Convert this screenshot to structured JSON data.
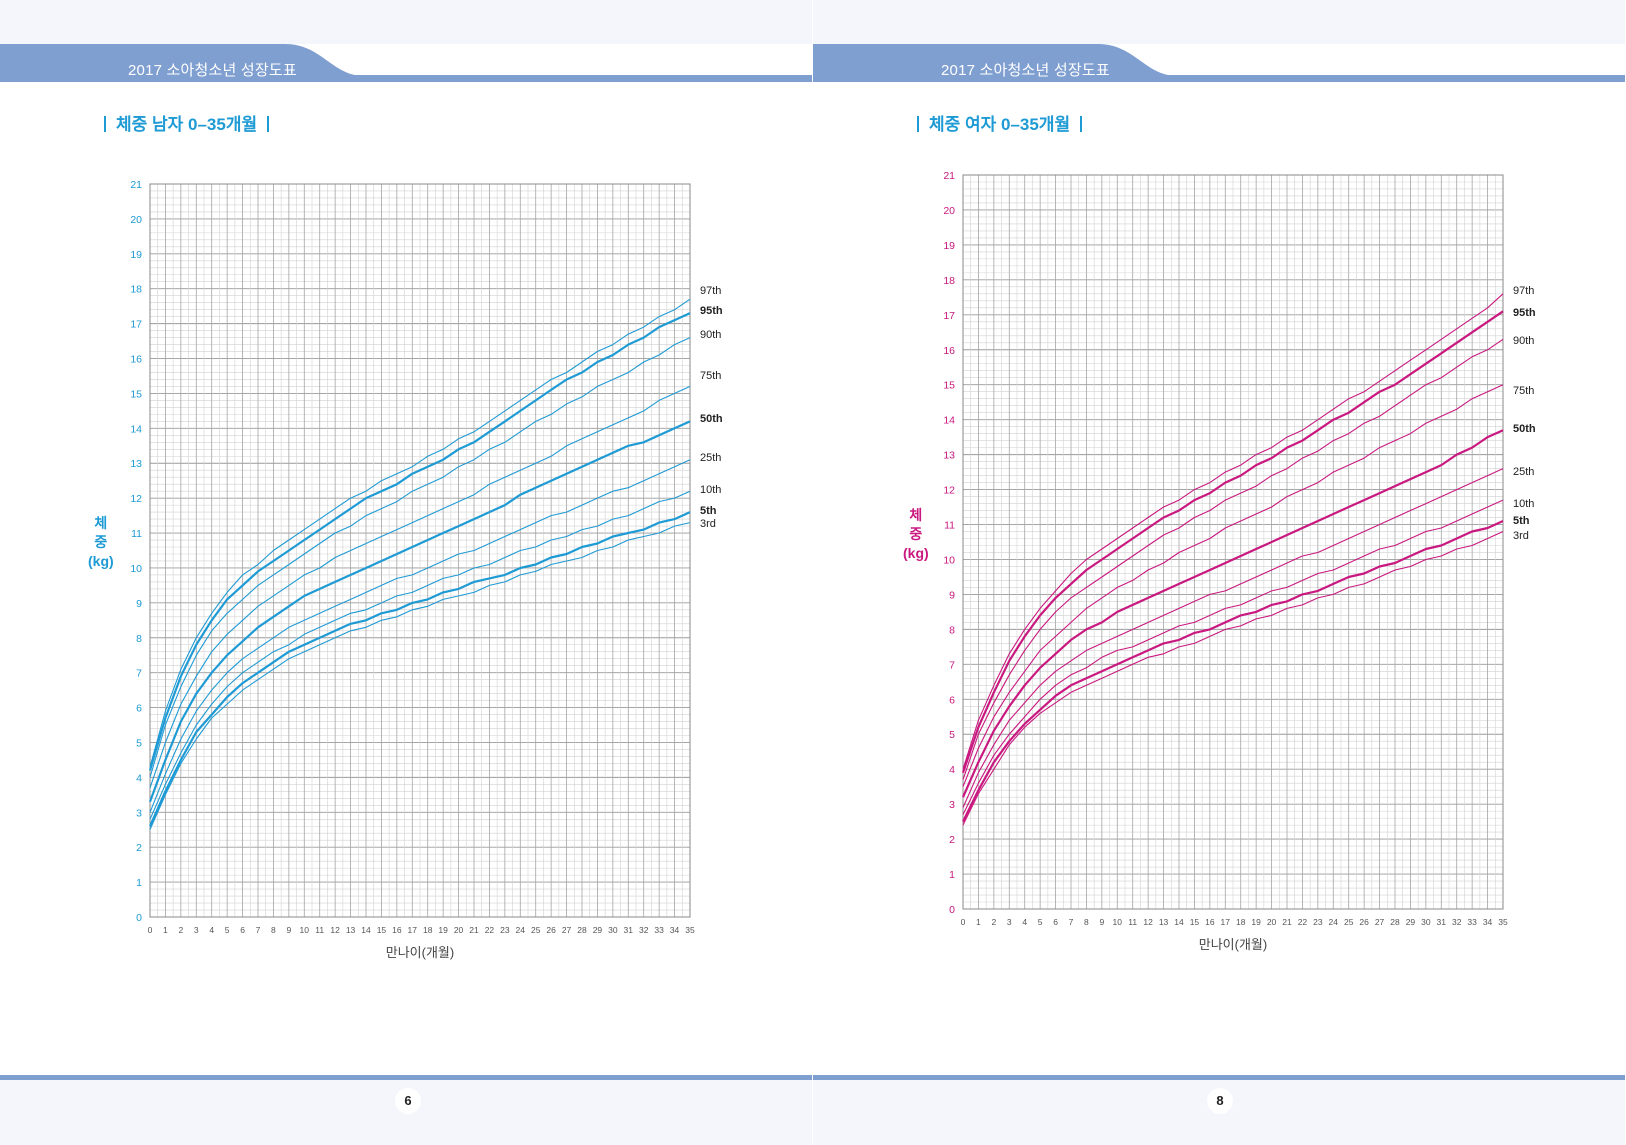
{
  "header": {
    "title": "2017 소아청소년 성장도표"
  },
  "footer": {
    "left_page": "6",
    "right_page": "8"
  },
  "percentile_labels": [
    "97th",
    "95th",
    "90th",
    "75th",
    "50th",
    "25th",
    "10th",
    "5th",
    "3rd"
  ],
  "colors": {
    "header_blue": "#7f9fd1",
    "boys_line": "#1e9ad4",
    "girls_line": "#c9187f"
  },
  "chart_data": [
    {
      "type": "line",
      "title": "체중 남자 0–35개월",
      "xlabel": "만나이(개월)",
      "ylabel": [
        "체",
        "중",
        "(kg)"
      ],
      "xlim": [
        0,
        35
      ],
      "ylim": [
        0,
        21
      ],
      "grid": true,
      "x": [
        0,
        1,
        2,
        3,
        4,
        5,
        6,
        7,
        8,
        9,
        10,
        11,
        12,
        13,
        14,
        15,
        16,
        17,
        18,
        19,
        20,
        21,
        22,
        23,
        24,
        25,
        26,
        27,
        28,
        29,
        30,
        31,
        32,
        33,
        34,
        35
      ],
      "series": [
        {
          "name": "97th",
          "emphasis": false,
          "values": [
            4.3,
            5.9,
            7.1,
            8.0,
            8.7,
            9.3,
            9.8,
            10.1,
            10.5,
            10.8,
            11.1,
            11.4,
            11.7,
            12.0,
            12.2,
            12.5,
            12.7,
            12.9,
            13.2,
            13.4,
            13.7,
            13.9,
            14.2,
            14.5,
            14.8,
            15.1,
            15.4,
            15.6,
            15.9,
            16.2,
            16.4,
            16.7,
            16.9,
            17.2,
            17.4,
            17.7
          ]
        },
        {
          "name": "95th",
          "emphasis": true,
          "values": [
            4.2,
            5.7,
            6.9,
            7.8,
            8.5,
            9.1,
            9.5,
            9.9,
            10.2,
            10.5,
            10.8,
            11.1,
            11.4,
            11.7,
            12.0,
            12.2,
            12.4,
            12.7,
            12.9,
            13.1,
            13.4,
            13.6,
            13.9,
            14.2,
            14.5,
            14.8,
            15.1,
            15.4,
            15.6,
            15.9,
            16.1,
            16.4,
            16.6,
            16.9,
            17.1,
            17.3
          ]
        },
        {
          "name": "90th",
          "emphasis": false,
          "values": [
            4.0,
            5.5,
            6.6,
            7.5,
            8.2,
            8.7,
            9.1,
            9.5,
            9.8,
            10.1,
            10.4,
            10.7,
            11.0,
            11.2,
            11.5,
            11.7,
            11.9,
            12.2,
            12.4,
            12.6,
            12.9,
            13.1,
            13.4,
            13.6,
            13.9,
            14.2,
            14.4,
            14.7,
            14.9,
            15.2,
            15.4,
            15.6,
            15.9,
            16.1,
            16.4,
            16.6
          ]
        },
        {
          "name": "75th",
          "emphasis": false,
          "values": [
            3.7,
            5.0,
            6.1,
            6.9,
            7.6,
            8.1,
            8.5,
            8.9,
            9.2,
            9.5,
            9.8,
            10.0,
            10.3,
            10.5,
            10.7,
            10.9,
            11.1,
            11.3,
            11.5,
            11.7,
            11.9,
            12.1,
            12.4,
            12.6,
            12.8,
            13.0,
            13.2,
            13.5,
            13.7,
            13.9,
            14.1,
            14.3,
            14.5,
            14.8,
            15.0,
            15.2
          ]
        },
        {
          "name": "50th",
          "emphasis": true,
          "values": [
            3.3,
            4.5,
            5.6,
            6.4,
            7.0,
            7.5,
            7.9,
            8.3,
            8.6,
            8.9,
            9.2,
            9.4,
            9.6,
            9.8,
            10.0,
            10.2,
            10.4,
            10.6,
            10.8,
            11.0,
            11.2,
            11.4,
            11.6,
            11.8,
            12.1,
            12.3,
            12.5,
            12.7,
            12.9,
            13.1,
            13.3,
            13.5,
            13.6,
            13.8,
            14.0,
            14.2
          ]
        },
        {
          "name": "25th",
          "emphasis": false,
          "values": [
            3.0,
            4.1,
            5.1,
            5.9,
            6.5,
            7.0,
            7.4,
            7.7,
            8.0,
            8.3,
            8.5,
            8.7,
            8.9,
            9.1,
            9.3,
            9.5,
            9.7,
            9.8,
            10.0,
            10.2,
            10.4,
            10.5,
            10.7,
            10.9,
            11.1,
            11.3,
            11.5,
            11.6,
            11.8,
            12.0,
            12.2,
            12.3,
            12.5,
            12.7,
            12.9,
            13.1
          ]
        },
        {
          "name": "10th",
          "emphasis": false,
          "values": [
            2.8,
            3.8,
            4.7,
            5.5,
            6.1,
            6.6,
            7.0,
            7.3,
            7.6,
            7.8,
            8.1,
            8.3,
            8.5,
            8.7,
            8.8,
            9.0,
            9.2,
            9.3,
            9.5,
            9.7,
            9.8,
            10.0,
            10.1,
            10.3,
            10.5,
            10.6,
            10.8,
            10.9,
            11.1,
            11.2,
            11.4,
            11.5,
            11.7,
            11.9,
            12.0,
            12.2
          ]
        },
        {
          "name": "5th",
          "emphasis": true,
          "values": [
            2.6,
            3.6,
            4.5,
            5.3,
            5.8,
            6.3,
            6.7,
            7.0,
            7.3,
            7.6,
            7.8,
            8.0,
            8.2,
            8.4,
            8.5,
            8.7,
            8.8,
            9.0,
            9.1,
            9.3,
            9.4,
            9.6,
            9.7,
            9.8,
            10.0,
            10.1,
            10.3,
            10.4,
            10.6,
            10.7,
            10.9,
            11.0,
            11.1,
            11.3,
            11.4,
            11.6
          ]
        },
        {
          "name": "3rd",
          "emphasis": false,
          "values": [
            2.5,
            3.5,
            4.4,
            5.1,
            5.7,
            6.1,
            6.5,
            6.8,
            7.1,
            7.4,
            7.6,
            7.8,
            8.0,
            8.2,
            8.3,
            8.5,
            8.6,
            8.8,
            8.9,
            9.1,
            9.2,
            9.3,
            9.5,
            9.6,
            9.8,
            9.9,
            10.1,
            10.2,
            10.3,
            10.5,
            10.6,
            10.8,
            10.9,
            11.0,
            11.2,
            11.3
          ]
        }
      ]
    },
    {
      "type": "line",
      "title": "체중 여자 0–35개월",
      "xlabel": "만나이(개월)",
      "ylabel": [
        "체",
        "중",
        "(kg)"
      ],
      "xlim": [
        0,
        35
      ],
      "ylim": [
        0,
        21
      ],
      "grid": true,
      "x": [
        0,
        1,
        2,
        3,
        4,
        5,
        6,
        7,
        8,
        9,
        10,
        11,
        12,
        13,
        14,
        15,
        16,
        17,
        18,
        19,
        20,
        21,
        22,
        23,
        24,
        25,
        26,
        27,
        28,
        29,
        30,
        31,
        32,
        33,
        34,
        35
      ],
      "series": [
        {
          "name": "97th",
          "emphasis": false,
          "values": [
            4.0,
            5.4,
            6.4,
            7.3,
            8.0,
            8.6,
            9.1,
            9.6,
            10.0,
            10.3,
            10.6,
            10.9,
            11.2,
            11.5,
            11.7,
            12.0,
            12.2,
            12.5,
            12.7,
            13.0,
            13.2,
            13.5,
            13.7,
            14.0,
            14.3,
            14.6,
            14.8,
            15.1,
            15.4,
            15.7,
            16.0,
            16.3,
            16.6,
            16.9,
            17.2,
            17.6
          ]
        },
        {
          "name": "95th",
          "emphasis": true,
          "values": [
            3.9,
            5.2,
            6.2,
            7.1,
            7.8,
            8.4,
            8.9,
            9.3,
            9.7,
            10.0,
            10.3,
            10.6,
            10.9,
            11.2,
            11.4,
            11.7,
            11.9,
            12.2,
            12.4,
            12.7,
            12.9,
            13.2,
            13.4,
            13.7,
            14.0,
            14.2,
            14.5,
            14.8,
            15.0,
            15.3,
            15.6,
            15.9,
            16.2,
            16.5,
            16.8,
            17.1
          ]
        },
        {
          "name": "90th",
          "emphasis": false,
          "values": [
            3.7,
            5.0,
            5.9,
            6.7,
            7.4,
            8.0,
            8.5,
            8.9,
            9.2,
            9.5,
            9.8,
            10.1,
            10.4,
            10.7,
            10.9,
            11.2,
            11.4,
            11.7,
            11.9,
            12.1,
            12.4,
            12.6,
            12.9,
            13.1,
            13.4,
            13.6,
            13.9,
            14.1,
            14.4,
            14.7,
            15.0,
            15.2,
            15.5,
            15.8,
            16.0,
            16.3
          ]
        },
        {
          "name": "75th",
          "emphasis": false,
          "values": [
            3.5,
            4.6,
            5.5,
            6.2,
            6.8,
            7.4,
            7.8,
            8.2,
            8.6,
            8.9,
            9.2,
            9.4,
            9.7,
            9.9,
            10.2,
            10.4,
            10.6,
            10.9,
            11.1,
            11.3,
            11.5,
            11.8,
            12.0,
            12.2,
            12.5,
            12.7,
            12.9,
            13.2,
            13.4,
            13.6,
            13.9,
            14.1,
            14.3,
            14.6,
            14.8,
            15.0
          ]
        },
        {
          "name": "50th",
          "emphasis": true,
          "values": [
            3.2,
            4.2,
            5.1,
            5.8,
            6.4,
            6.9,
            7.3,
            7.7,
            8.0,
            8.2,
            8.5,
            8.7,
            8.9,
            9.1,
            9.3,
            9.5,
            9.7,
            9.9,
            10.1,
            10.3,
            10.5,
            10.7,
            10.9,
            11.1,
            11.3,
            11.5,
            11.7,
            11.9,
            12.1,
            12.3,
            12.5,
            12.7,
            13.0,
            13.2,
            13.5,
            13.7
          ]
        },
        {
          "name": "25th",
          "emphasis": false,
          "values": [
            2.9,
            3.9,
            4.7,
            5.4,
            5.9,
            6.4,
            6.8,
            7.1,
            7.4,
            7.6,
            7.8,
            8.0,
            8.2,
            8.4,
            8.6,
            8.8,
            9.0,
            9.1,
            9.3,
            9.5,
            9.7,
            9.9,
            10.1,
            10.2,
            10.4,
            10.6,
            10.8,
            11.0,
            11.2,
            11.4,
            11.6,
            11.8,
            12.0,
            12.2,
            12.4,
            12.6
          ]
        },
        {
          "name": "10th",
          "emphasis": false,
          "values": [
            2.7,
            3.6,
            4.4,
            5.0,
            5.5,
            6.0,
            6.4,
            6.7,
            6.9,
            7.2,
            7.4,
            7.5,
            7.7,
            7.9,
            8.1,
            8.2,
            8.4,
            8.6,
            8.7,
            8.9,
            9.1,
            9.2,
            9.4,
            9.6,
            9.7,
            9.9,
            10.1,
            10.3,
            10.4,
            10.6,
            10.8,
            10.9,
            11.1,
            11.3,
            11.5,
            11.7
          ]
        },
        {
          "name": "5th",
          "emphasis": true,
          "values": [
            2.5,
            3.4,
            4.2,
            4.8,
            5.3,
            5.7,
            6.1,
            6.4,
            6.6,
            6.8,
            7.0,
            7.2,
            7.4,
            7.6,
            7.7,
            7.9,
            8.0,
            8.2,
            8.4,
            8.5,
            8.7,
            8.8,
            9.0,
            9.1,
            9.3,
            9.5,
            9.6,
            9.8,
            9.9,
            10.1,
            10.3,
            10.4,
            10.6,
            10.8,
            10.9,
            11.1
          ]
        },
        {
          "name": "3rd",
          "emphasis": false,
          "values": [
            2.4,
            3.3,
            4.0,
            4.7,
            5.2,
            5.6,
            5.9,
            6.2,
            6.4,
            6.6,
            6.8,
            7.0,
            7.2,
            7.3,
            7.5,
            7.6,
            7.8,
            8.0,
            8.1,
            8.3,
            8.4,
            8.6,
            8.7,
            8.9,
            9.0,
            9.2,
            9.3,
            9.5,
            9.7,
            9.8,
            10.0,
            10.1,
            10.3,
            10.4,
            10.6,
            10.8
          ]
        }
      ]
    }
  ]
}
